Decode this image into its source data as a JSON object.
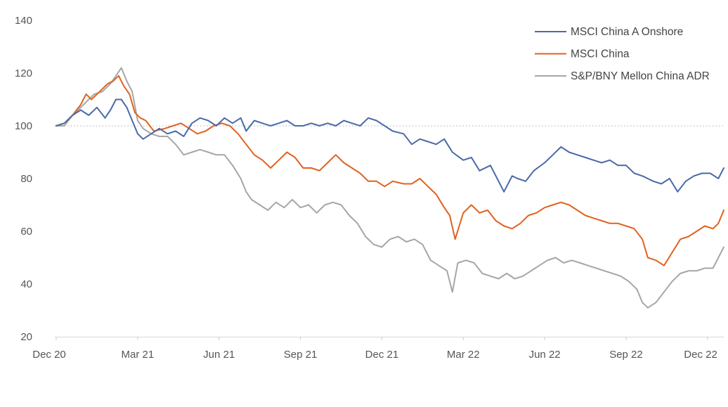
{
  "chart_data": {
    "type": "line",
    "title": "",
    "xlabel": "",
    "ylabel": "",
    "ylim": [
      20,
      140
    ],
    "yticks": [
      20,
      40,
      60,
      80,
      100,
      120,
      140
    ],
    "xlim": [
      0,
      24.6
    ],
    "xticks": [
      {
        "t": 0,
        "label": "Dec 20"
      },
      {
        "t": 3,
        "label": "Mar 21"
      },
      {
        "t": 6,
        "label": "Jun 21"
      },
      {
        "t": 9,
        "label": "Sep 21"
      },
      {
        "t": 12,
        "label": "Dec 21"
      },
      {
        "t": 15,
        "label": "Mar 22"
      },
      {
        "t": 18,
        "label": "Jun 22"
      },
      {
        "t": 21,
        "label": "Sep 22"
      },
      {
        "t": 24,
        "label": "Dec 22"
      }
    ],
    "reference_line": 100,
    "legend_position": "top-right",
    "series": [
      {
        "name": "MSCI China A Onshore",
        "color": "#4a6aa8",
        "points": [
          [
            0,
            100
          ],
          [
            0.3,
            101
          ],
          [
            0.6,
            104
          ],
          [
            0.9,
            106
          ],
          [
            1.2,
            104
          ],
          [
            1.5,
            107
          ],
          [
            1.8,
            103
          ],
          [
            2.0,
            106
          ],
          [
            2.2,
            110
          ],
          [
            2.4,
            110
          ],
          [
            2.6,
            107
          ],
          [
            2.8,
            102
          ],
          [
            3.0,
            97
          ],
          [
            3.2,
            95
          ],
          [
            3.5,
            97
          ],
          [
            3.8,
            99
          ],
          [
            4.1,
            97
          ],
          [
            4.4,
            98
          ],
          [
            4.7,
            96
          ],
          [
            5.0,
            101
          ],
          [
            5.3,
            103
          ],
          [
            5.6,
            102
          ],
          [
            5.9,
            100
          ],
          [
            6.2,
            103
          ],
          [
            6.5,
            101
          ],
          [
            6.8,
            103
          ],
          [
            7.0,
            98
          ],
          [
            7.3,
            102
          ],
          [
            7.6,
            101
          ],
          [
            7.9,
            100
          ],
          [
            8.2,
            101
          ],
          [
            8.5,
            102
          ],
          [
            8.8,
            100
          ],
          [
            9.1,
            100
          ],
          [
            9.4,
            101
          ],
          [
            9.7,
            100
          ],
          [
            10.0,
            101
          ],
          [
            10.3,
            100
          ],
          [
            10.6,
            102
          ],
          [
            10.9,
            101
          ],
          [
            11.2,
            100
          ],
          [
            11.5,
            103
          ],
          [
            11.8,
            102
          ],
          [
            12.1,
            100
          ],
          [
            12.4,
            98
          ],
          [
            12.8,
            97
          ],
          [
            13.1,
            93
          ],
          [
            13.4,
            95
          ],
          [
            13.7,
            94
          ],
          [
            14.0,
            93
          ],
          [
            14.3,
            95
          ],
          [
            14.6,
            90
          ],
          [
            15.0,
            87
          ],
          [
            15.3,
            88
          ],
          [
            15.6,
            83
          ],
          [
            16.0,
            85
          ],
          [
            16.3,
            79
          ],
          [
            16.5,
            75
          ],
          [
            16.8,
            81
          ],
          [
            17.0,
            80
          ],
          [
            17.3,
            79
          ],
          [
            17.6,
            83
          ],
          [
            18.0,
            86
          ],
          [
            18.3,
            89
          ],
          [
            18.6,
            92
          ],
          [
            18.9,
            90
          ],
          [
            19.2,
            89
          ],
          [
            19.5,
            88
          ],
          [
            19.8,
            87
          ],
          [
            20.1,
            86
          ],
          [
            20.4,
            87
          ],
          [
            20.7,
            85
          ],
          [
            21.0,
            85
          ],
          [
            21.3,
            82
          ],
          [
            21.6,
            81
          ],
          [
            22.0,
            79
          ],
          [
            22.3,
            78
          ],
          [
            22.6,
            80
          ],
          [
            22.9,
            75
          ],
          [
            23.2,
            79
          ],
          [
            23.5,
            81
          ],
          [
            23.8,
            82
          ],
          [
            24.1,
            82
          ],
          [
            24.4,
            80
          ],
          [
            24.6,
            84
          ]
        ]
      },
      {
        "name": "MSCI China",
        "color": "#e0621f",
        "points": [
          [
            0,
            100
          ],
          [
            0.3,
            101
          ],
          [
            0.6,
            104
          ],
          [
            0.9,
            108
          ],
          [
            1.1,
            112
          ],
          [
            1.3,
            110
          ],
          [
            1.6,
            113
          ],
          [
            1.9,
            116
          ],
          [
            2.1,
            117
          ],
          [
            2.3,
            119
          ],
          [
            2.5,
            115
          ],
          [
            2.7,
            112
          ],
          [
            2.9,
            105
          ],
          [
            3.1,
            103
          ],
          [
            3.3,
            102
          ],
          [
            3.6,
            98
          ],
          [
            4.0,
            99
          ],
          [
            4.3,
            100
          ],
          [
            4.6,
            101
          ],
          [
            4.9,
            99
          ],
          [
            5.2,
            97
          ],
          [
            5.5,
            98
          ],
          [
            5.8,
            100
          ],
          [
            6.1,
            101
          ],
          [
            6.4,
            100
          ],
          [
            6.7,
            97
          ],
          [
            7.0,
            93
          ],
          [
            7.3,
            89
          ],
          [
            7.6,
            87
          ],
          [
            7.9,
            84
          ],
          [
            8.2,
            87
          ],
          [
            8.5,
            90
          ],
          [
            8.8,
            88
          ],
          [
            9.1,
            84
          ],
          [
            9.4,
            84
          ],
          [
            9.7,
            83
          ],
          [
            10.0,
            86
          ],
          [
            10.3,
            89
          ],
          [
            10.6,
            86
          ],
          [
            10.9,
            84
          ],
          [
            11.2,
            82
          ],
          [
            11.5,
            79
          ],
          [
            11.8,
            79
          ],
          [
            12.1,
            77
          ],
          [
            12.4,
            79
          ],
          [
            12.8,
            78
          ],
          [
            13.1,
            78
          ],
          [
            13.4,
            80
          ],
          [
            13.7,
            77
          ],
          [
            14.0,
            74
          ],
          [
            14.3,
            69
          ],
          [
            14.5,
            66
          ],
          [
            14.7,
            57
          ],
          [
            15.0,
            67
          ],
          [
            15.3,
            70
          ],
          [
            15.6,
            67
          ],
          [
            15.9,
            68
          ],
          [
            16.2,
            64
          ],
          [
            16.5,
            62
          ],
          [
            16.8,
            61
          ],
          [
            17.1,
            63
          ],
          [
            17.4,
            66
          ],
          [
            17.7,
            67
          ],
          [
            18.0,
            69
          ],
          [
            18.3,
            70
          ],
          [
            18.6,
            71
          ],
          [
            18.9,
            70
          ],
          [
            19.2,
            68
          ],
          [
            19.5,
            66
          ],
          [
            19.8,
            65
          ],
          [
            20.1,
            64
          ],
          [
            20.4,
            63
          ],
          [
            20.7,
            63
          ],
          [
            21.0,
            62
          ],
          [
            21.3,
            61
          ],
          [
            21.6,
            57
          ],
          [
            21.8,
            50
          ],
          [
            22.1,
            49
          ],
          [
            22.4,
            47
          ],
          [
            22.7,
            52
          ],
          [
            23.0,
            57
          ],
          [
            23.3,
            58
          ],
          [
            23.6,
            60
          ],
          [
            23.9,
            62
          ],
          [
            24.2,
            61
          ],
          [
            24.4,
            63
          ],
          [
            24.6,
            68
          ]
        ]
      },
      {
        "name": "S&P/BNY Mellon China ADR",
        "color": "#a6a6a6",
        "points": [
          [
            0,
            100
          ],
          [
            0.3,
            100
          ],
          [
            0.6,
            104
          ],
          [
            0.9,
            107
          ],
          [
            1.2,
            110
          ],
          [
            1.4,
            112
          ],
          [
            1.7,
            113
          ],
          [
            2.0,
            116
          ],
          [
            2.2,
            119
          ],
          [
            2.4,
            122
          ],
          [
            2.6,
            117
          ],
          [
            2.8,
            113
          ],
          [
            3.0,
            102
          ],
          [
            3.2,
            99
          ],
          [
            3.5,
            97
          ],
          [
            3.8,
            96
          ],
          [
            4.1,
            96
          ],
          [
            4.4,
            93
          ],
          [
            4.7,
            89
          ],
          [
            5.0,
            90
          ],
          [
            5.3,
            91
          ],
          [
            5.6,
            90
          ],
          [
            5.9,
            89
          ],
          [
            6.2,
            89
          ],
          [
            6.5,
            85
          ],
          [
            6.8,
            80
          ],
          [
            7.0,
            75
          ],
          [
            7.2,
            72
          ],
          [
            7.5,
            70
          ],
          [
            7.8,
            68
          ],
          [
            8.1,
            71
          ],
          [
            8.4,
            69
          ],
          [
            8.7,
            72
          ],
          [
            9.0,
            69
          ],
          [
            9.3,
            70
          ],
          [
            9.6,
            67
          ],
          [
            9.9,
            70
          ],
          [
            10.2,
            71
          ],
          [
            10.5,
            70
          ],
          [
            10.8,
            66
          ],
          [
            11.1,
            63
          ],
          [
            11.4,
            58
          ],
          [
            11.7,
            55
          ],
          [
            12.0,
            54
          ],
          [
            12.3,
            57
          ],
          [
            12.6,
            58
          ],
          [
            12.9,
            56
          ],
          [
            13.2,
            57
          ],
          [
            13.5,
            55
          ],
          [
            13.8,
            49
          ],
          [
            14.1,
            47
          ],
          [
            14.4,
            45
          ],
          [
            14.6,
            37
          ],
          [
            14.8,
            48
          ],
          [
            15.1,
            49
          ],
          [
            15.4,
            48
          ],
          [
            15.7,
            44
          ],
          [
            16.0,
            43
          ],
          [
            16.3,
            42
          ],
          [
            16.6,
            44
          ],
          [
            16.9,
            42
          ],
          [
            17.2,
            43
          ],
          [
            17.5,
            45
          ],
          [
            17.8,
            47
          ],
          [
            18.1,
            49
          ],
          [
            18.4,
            50
          ],
          [
            18.7,
            48
          ],
          [
            19.0,
            49
          ],
          [
            19.3,
            48
          ],
          [
            19.6,
            47
          ],
          [
            19.9,
            46
          ],
          [
            20.2,
            45
          ],
          [
            20.5,
            44
          ],
          [
            20.8,
            43
          ],
          [
            21.1,
            41
          ],
          [
            21.4,
            38
          ],
          [
            21.6,
            33
          ],
          [
            21.8,
            31
          ],
          [
            22.1,
            33
          ],
          [
            22.4,
            37
          ],
          [
            22.7,
            41
          ],
          [
            23.0,
            44
          ],
          [
            23.3,
            45
          ],
          [
            23.6,
            45
          ],
          [
            23.9,
            46
          ],
          [
            24.2,
            46
          ],
          [
            24.4,
            50
          ],
          [
            24.6,
            54
          ]
        ]
      }
    ]
  }
}
